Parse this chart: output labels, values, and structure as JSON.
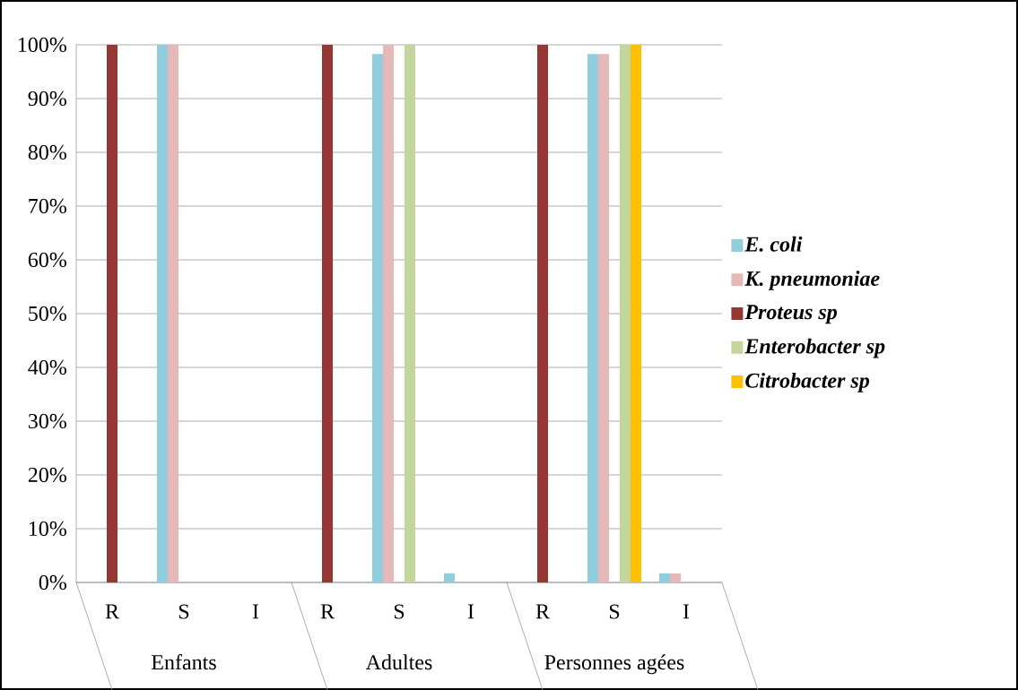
{
  "chart_data": {
    "type": "bar",
    "categories": [
      "R",
      "S",
      "I",
      "R",
      "S",
      "I",
      "R",
      "S",
      "I"
    ],
    "annotations": [
      "Enfants",
      "Adultes",
      "Personnes agées"
    ],
    "series": [
      {
        "name": "E. coli",
        "color": "#92cddc",
        "values": [
          0,
          100,
          0,
          0,
          98.3,
          1.7,
          0,
          98.3,
          1.7
        ]
      },
      {
        "name": "K. pneumoniae",
        "color": "#e6b9b8",
        "values": [
          0,
          100,
          0,
          0,
          100,
          0,
          0,
          98.3,
          1.7
        ]
      },
      {
        "name": "Proteus sp",
        "color": "#953735",
        "values": [
          100,
          0,
          0,
          100,
          0,
          0,
          100,
          0,
          0
        ]
      },
      {
        "name": "Enterobacter sp",
        "color": "#c3d69b",
        "values": [
          0,
          0,
          0,
          0,
          100,
          0,
          0,
          100,
          0
        ]
      },
      {
        "name": "Citrobacter sp",
        "color": "#ffc000",
        "values": [
          0,
          0,
          0,
          0,
          0,
          0,
          0,
          100,
          0
        ]
      }
    ],
    "ylim": [
      0,
      100
    ],
    "yticks": [
      {
        "value": 0,
        "label": "0%"
      },
      {
        "value": 10,
        "label": "10%"
      },
      {
        "value": 20,
        "label": "20%"
      },
      {
        "value": 30,
        "label": "30%"
      },
      {
        "value": 40,
        "label": "40%"
      },
      {
        "value": 50,
        "label": "50%"
      },
      {
        "value": 60,
        "label": "60%"
      },
      {
        "value": 70,
        "label": "70%"
      },
      {
        "value": 80,
        "label": "80%"
      },
      {
        "value": 90,
        "label": "90%"
      },
      {
        "value": 100,
        "label": "100%"
      }
    ],
    "grid": "y",
    "legend": "right"
  }
}
